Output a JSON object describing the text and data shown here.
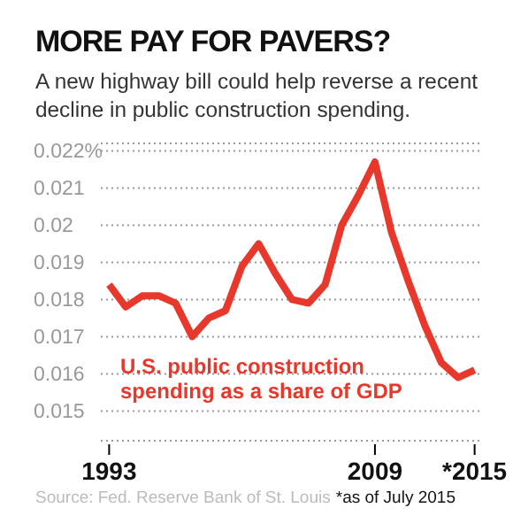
{
  "chart_data": {
    "type": "line",
    "title": "MORE PAY FOR PAVERS?",
    "subtitle": "A new highway bill could help reverse a recent decline in public construction spending.",
    "x": [
      1993,
      1994,
      1995,
      1996,
      1997,
      1998,
      1999,
      2000,
      2001,
      2002,
      2003,
      2004,
      2005,
      2006,
      2007,
      2008,
      2009,
      2010,
      2011,
      2012,
      2013,
      2014,
      2015
    ],
    "series": [
      {
        "name": "U.S. public construction spending as a share of GDP",
        "color": "#e8372b",
        "values": [
          0.0184,
          0.0178,
          0.0181,
          0.0181,
          0.0179,
          0.017,
          0.0175,
          0.0177,
          0.0189,
          0.0195,
          0.0187,
          0.018,
          0.0179,
          0.0184,
          0.02,
          0.0208,
          0.0217,
          0.0198,
          0.0185,
          0.0173,
          0.0163,
          0.0159,
          0.0161
        ]
      }
    ],
    "xlim": [
      1992.5,
      2015.5
    ],
    "xticks": [
      1993,
      2009,
      {
        "value": 2015,
        "label": "*2015"
      }
    ],
    "ylim": [
      0.0142,
      0.0222
    ],
    "yticks": [
      0.015,
      0.016,
      0.017,
      0.018,
      0.019,
      0.02,
      0.021,
      {
        "value": 0.022,
        "label": "0.022%"
      }
    ],
    "grid": "y",
    "legend": false,
    "marker": "none",
    "line_style": "solid",
    "annotations": [
      "Source: Fed. Reserve Bank of St. Louis",
      "*as of July 2015"
    ]
  }
}
